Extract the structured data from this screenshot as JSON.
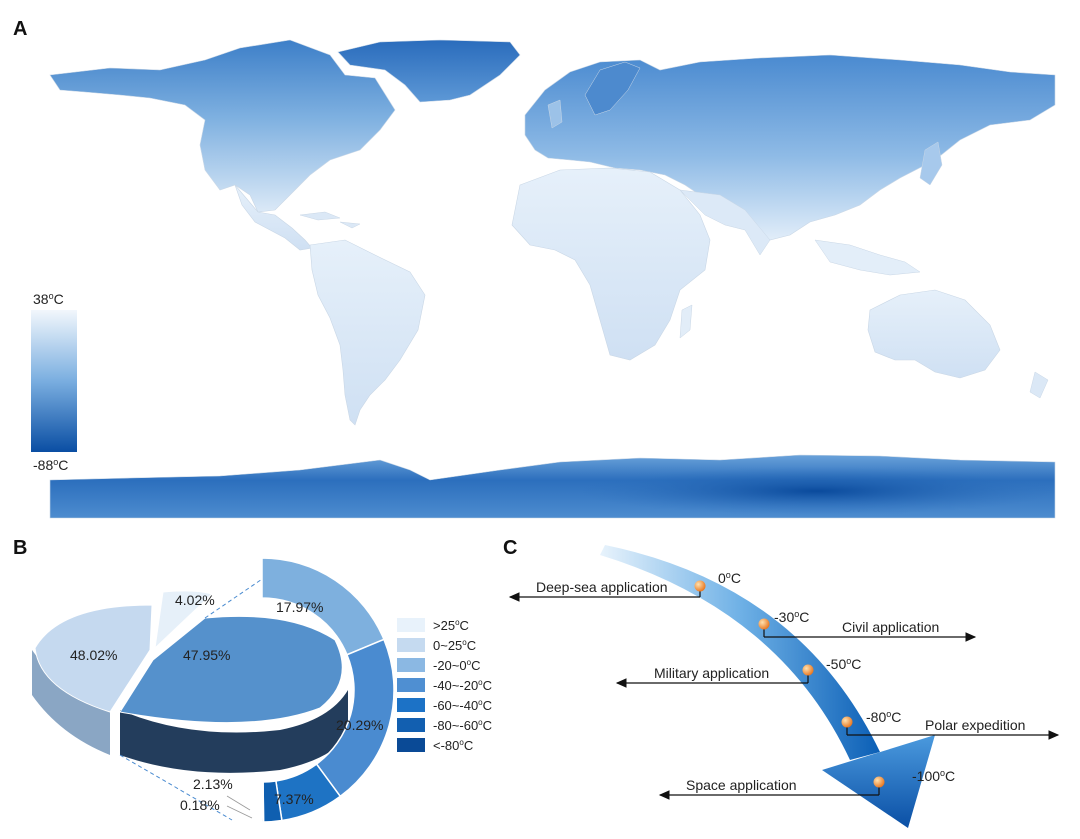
{
  "panels": {
    "a": "A",
    "b": "B",
    "c": "C"
  },
  "map": {
    "colorbar": {
      "max_label": "38oC",
      "min_label": "-88oC",
      "max_value": 38,
      "min_value": -88
    },
    "colors": {
      "warm": "#f2f7fc",
      "cold": "#0a4ea3",
      "mid": "#5b9bd5",
      "land_edge": "#c9d7e6"
    }
  },
  "pie": {
    "slices": [
      {
        "label": "48.02%",
        "value": 48.02,
        "color": "#c5d9ef"
      },
      {
        "label": "47.95%",
        "value": 47.95,
        "color": "#5591cc"
      },
      {
        "label": "4.02%",
        "value": 4.02,
        "color": "#e6f0f9"
      }
    ],
    "ring": [
      {
        "label": "17.97%",
        "value": 17.97,
        "color": "#7eb0de"
      },
      {
        "label": "20.29%",
        "value": 20.29,
        "color": "#4a8bd0"
      },
      {
        "label": "7.37%",
        "value": 7.37,
        "color": "#1e73c4"
      },
      {
        "label": "2.13%",
        "value": 2.13,
        "color": "#0f5fb0"
      },
      {
        "label": "0.18%",
        "value": 0.18,
        "color": "#0a4a93"
      }
    ],
    "legend": [
      {
        "label": ">25oC",
        "color": "#e8f2fb"
      },
      {
        "label": "0~25oC",
        "color": "#c5daf0"
      },
      {
        "label": "-20~0oC",
        "color": "#8bb8e3"
      },
      {
        "label": "-40~-20oC",
        "color": "#4f8fd2"
      },
      {
        "label": "-60~-40oC",
        "color": "#1c72c6"
      },
      {
        "label": "-80~-60oC",
        "color": "#125fb0"
      },
      {
        "label": "<-80oC",
        "color": "#0a4a96"
      }
    ]
  },
  "arrow": {
    "points": [
      {
        "temp": "0oC",
        "app": "Deep-sea application",
        "dir": "left"
      },
      {
        "temp": "-30oC",
        "app": "Civil application",
        "dir": "right"
      },
      {
        "temp": "-50oC",
        "app": "Military application",
        "dir": "left"
      },
      {
        "temp": "-80oC",
        "app": "Polar expedition",
        "dir": "right"
      },
      {
        "temp": "-100oC",
        "app": "Space application",
        "dir": "left"
      }
    ]
  }
}
